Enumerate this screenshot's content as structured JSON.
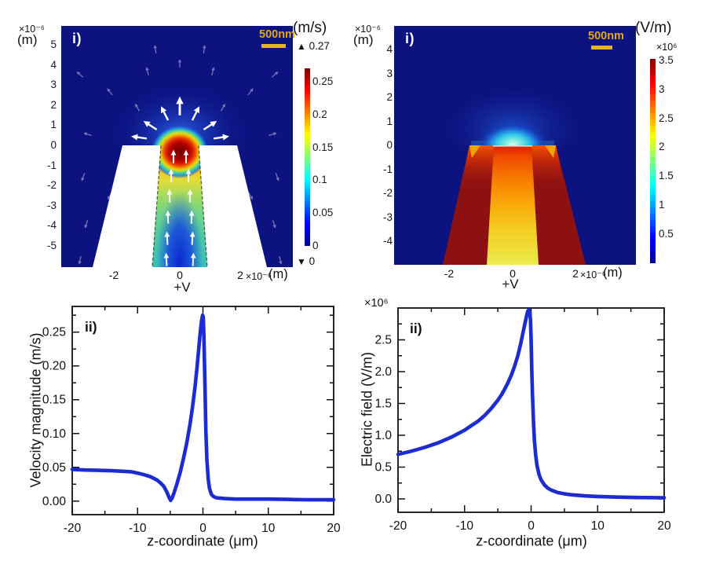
{
  "chart_data": [
    {
      "id": "velocity-field-map",
      "type": "heatmap",
      "panel_label": "i)",
      "y_axis_prefix": "×10⁻⁶",
      "y_axis_unit": "(m)",
      "y_ticks": [
        "5",
        "4",
        "3",
        "2",
        "1",
        "0",
        "-1",
        "-2",
        "-3",
        "-4",
        "-5"
      ],
      "x_ticks": [
        "-2",
        "0",
        "2"
      ],
      "x_suffix_exp": "×10⁻⁶",
      "x_suffix_unit": "(m)",
      "bottom_label": "+V",
      "scale_bar_label": "500nm",
      "x_range_um": [
        -3.7,
        3.6
      ],
      "y_range_um": [
        -6.1,
        5.9
      ],
      "colormap": "jet",
      "background_color": "#0c1280",
      "colorbar": {
        "unit": "(m/s)",
        "max_marker": "▲",
        "max_value": "0.27",
        "min_marker": "▼",
        "min_value": "0",
        "ticks": [
          "0.25",
          "0.2",
          "0.15",
          "0.1",
          "0.05",
          "0"
        ],
        "range": [
          0,
          0.27
        ]
      },
      "description": "Simulated flow-velocity magnitude around a tapered nanopipette tip held at +V; white arrows show flow rising through the channel and radiating outward above the orifice; maximum 0.27 m/s at the orifice."
    },
    {
      "id": "electric-field-map",
      "type": "heatmap",
      "panel_label": "i)",
      "y_axis_prefix": "×10⁻⁶",
      "y_axis_unit": "(m)",
      "y_ticks": [
        "4",
        "3",
        "2",
        "1",
        "0",
        "-1",
        "-2",
        "-3",
        "-4"
      ],
      "x_ticks": [
        "-2",
        "0",
        "2"
      ],
      "x_suffix_exp": "×10⁻⁶",
      "x_suffix_unit": "(m)",
      "bottom_label": "+V",
      "scale_bar_label": "500nm",
      "x_range_um": [
        -3.7,
        3.9
      ],
      "y_range_um": [
        -5.0,
        5.0
      ],
      "colormap": "jet",
      "background_color": "#0c1280",
      "colorbar": {
        "unit": "(V/m)",
        "scale": "×10⁶",
        "ticks": [
          "3.5",
          "3",
          "2.5",
          "2",
          "1.5",
          "1",
          "0.5"
        ],
        "range": [
          0,
          3500000
        ]
      },
      "description": "Simulated electric-field magnitude around the nanopipette tip; field is highest (≈3.5×10⁶ V/m) within the glass walls and tapered channel and decays into the bath above the orifice."
    },
    {
      "id": "velocity-profile",
      "type": "line",
      "panel_label": "ii)",
      "xlabel": "z-coordinate (μm)",
      "ylabel": "Velocity magnitude (m/s)",
      "xlim": [
        -20,
        20
      ],
      "ylim": [
        -0.02,
        0.288
      ],
      "x_ticks": [
        -20,
        -10,
        0,
        10,
        20
      ],
      "x_tick_labels": [
        "-20",
        "-10",
        "0",
        "10",
        "20"
      ],
      "x_minor_ticks": [
        -15,
        -5,
        5,
        15
      ],
      "y_ticks": [
        0,
        0.05,
        0.1,
        0.15,
        0.2,
        0.25
      ],
      "y_tick_labels": [
        "0.00",
        "0.05",
        "0.10",
        "0.15",
        "0.20",
        "0.25"
      ],
      "y_minor_ticks": [
        0.025,
        0.075,
        0.125,
        0.175,
        0.225,
        0.275
      ],
      "line_color": "#1c2bd2",
      "peak": {
        "x": -0.05,
        "y": 0.275
      },
      "points": [
        [
          -20,
          0.047
        ],
        [
          -18,
          0.046
        ],
        [
          -16,
          0.0455
        ],
        [
          -14,
          0.045
        ],
        [
          -12,
          0.044
        ],
        [
          -11,
          0.0435
        ],
        [
          -10,
          0.0415
        ],
        [
          -9,
          0.039
        ],
        [
          -8,
          0.036
        ],
        [
          -7,
          0.031
        ],
        [
          -6.5,
          0.027
        ],
        [
          -6,
          0.022
        ],
        [
          -5.5,
          0.013
        ],
        [
          -5.2,
          0.006
        ],
        [
          -4.95,
          0.001
        ],
        [
          -4.7,
          0.005
        ],
        [
          -4.4,
          0.013
        ],
        [
          -4,
          0.025
        ],
        [
          -3.5,
          0.042
        ],
        [
          -3,
          0.062
        ],
        [
          -2.5,
          0.085
        ],
        [
          -2,
          0.112
        ],
        [
          -1.6,
          0.139
        ],
        [
          -1.2,
          0.17
        ],
        [
          -0.9,
          0.198
        ],
        [
          -0.6,
          0.23
        ],
        [
          -0.4,
          0.251
        ],
        [
          -0.2,
          0.267
        ],
        [
          -0.05,
          0.275
        ],
        [
          0.05,
          0.272
        ],
        [
          0.15,
          0.245
        ],
        [
          0.3,
          0.175
        ],
        [
          0.45,
          0.105
        ],
        [
          0.6,
          0.062
        ],
        [
          0.8,
          0.033
        ],
        [
          1,
          0.019
        ],
        [
          1.3,
          0.01
        ],
        [
          1.6,
          0.007
        ],
        [
          2,
          0.005
        ],
        [
          2.6,
          0.0045
        ],
        [
          3.2,
          0.004
        ],
        [
          4,
          0.0035
        ],
        [
          5,
          0.003
        ],
        [
          7,
          0.003
        ],
        [
          10,
          0.003
        ],
        [
          13,
          0.0025
        ],
        [
          16,
          0.002
        ],
        [
          20,
          0.002
        ]
      ]
    },
    {
      "id": "electric-field-profile",
      "type": "line",
      "panel_label": "ii)",
      "xlabel": "z-coordinate (μm)",
      "ylabel": "Electric field (V/m)",
      "y_scale_label": "×10⁶",
      "xlim": [
        -20,
        20
      ],
      "ylim": [
        -0.21,
        3.0
      ],
      "x_ticks": [
        -20,
        -10,
        0,
        10,
        20
      ],
      "x_tick_labels": [
        "-20",
        "-10",
        "0",
        "10",
        "20"
      ],
      "x_minor_ticks": [
        -15,
        -5,
        5,
        15
      ],
      "y_ticks": [
        0,
        0.5,
        1.0,
        1.5,
        2.0,
        2.5
      ],
      "y_tick_labels": [
        "0.0",
        "0.5",
        "1.0",
        "1.5",
        "2.0",
        "2.5"
      ],
      "y_minor_ticks": [
        0.25,
        0.75,
        1.25,
        1.75,
        2.25,
        2.75
      ],
      "line_color": "#1c2bd2",
      "peak": {
        "x": -0.35,
        "y": 2.97
      },
      "points": [
        [
          -20,
          0.7
        ],
        [
          -18,
          0.75
        ],
        [
          -16,
          0.81
        ],
        [
          -14,
          0.88
        ],
        [
          -12,
          0.97
        ],
        [
          -10,
          1.08
        ],
        [
          -9,
          1.15
        ],
        [
          -8,
          1.22
        ],
        [
          -7,
          1.31
        ],
        [
          -6,
          1.42
        ],
        [
          -5,
          1.55
        ],
        [
          -4.5,
          1.63
        ],
        [
          -4,
          1.72
        ],
        [
          -3.5,
          1.82
        ],
        [
          -3,
          1.94
        ],
        [
          -2.5,
          2.08
        ],
        [
          -2,
          2.25
        ],
        [
          -1.6,
          2.42
        ],
        [
          -1.2,
          2.62
        ],
        [
          -0.9,
          2.77
        ],
        [
          -0.7,
          2.87
        ],
        [
          -0.5,
          2.95
        ],
        [
          -0.35,
          2.97
        ],
        [
          -0.2,
          2.93
        ],
        [
          -0.1,
          2.82
        ],
        [
          0,
          2.5
        ],
        [
          0.1,
          2.05
        ],
        [
          0.2,
          1.65
        ],
        [
          0.35,
          1.22
        ],
        [
          0.5,
          0.92
        ],
        [
          0.7,
          0.68
        ],
        [
          0.9,
          0.52
        ],
        [
          1.2,
          0.38
        ],
        [
          1.5,
          0.3
        ],
        [
          2,
          0.22
        ],
        [
          2.5,
          0.17
        ],
        [
          3,
          0.14
        ],
        [
          4,
          0.1
        ],
        [
          5,
          0.08
        ],
        [
          6,
          0.065
        ],
        [
          8,
          0.048
        ],
        [
          10,
          0.038
        ],
        [
          13,
          0.028
        ],
        [
          16,
          0.022
        ],
        [
          20,
          0.018
        ]
      ]
    }
  ]
}
